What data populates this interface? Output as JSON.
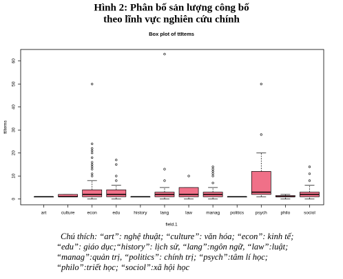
{
  "header": {
    "title_lines": [
      "Hình 2: Phân bố sản lượng công bố",
      "theo lĩnh vực nghiên cứu chính"
    ]
  },
  "chart_data": {
    "type": "box",
    "title": "Box plot of ttItems",
    "x_label": "field.1",
    "y_label": "ttItems",
    "categories": [
      "art",
      "culture",
      "econ",
      "edu",
      "history",
      "lang",
      "law",
      "manag",
      "politics",
      "psych",
      "philo",
      "sociol"
    ],
    "color": "#f07088",
    "boxes": [
      {
        "min": 1,
        "q1": 1,
        "median": 1,
        "q3": 1,
        "max": 1,
        "outliers": []
      },
      {
        "min": 1,
        "q1": 1,
        "median": 1,
        "q3": 2,
        "max": 2,
        "outliers": []
      },
      {
        "min": 0,
        "q1": 1,
        "median": 2,
        "q3": 4,
        "max": 8,
        "outliers": [
          10,
          11,
          13,
          14,
          15,
          16,
          18,
          20,
          21,
          22,
          24,
          50
        ]
      },
      {
        "min": 0,
        "q1": 1,
        "median": 2,
        "q3": 4,
        "max": 6,
        "outliers": [
          8,
          10,
          15,
          17
        ]
      },
      {
        "min": 1,
        "q1": 1,
        "median": 1,
        "q3": 1,
        "max": 1,
        "outliers": []
      },
      {
        "min": 0,
        "q1": 1,
        "median": 2,
        "q3": 3,
        "max": 5,
        "outliers": [
          8,
          13,
          63
        ]
      },
      {
        "min": 0,
        "q1": 1,
        "median": 2,
        "q3": 5,
        "max": 5,
        "outliers": [
          10
        ]
      },
      {
        "min": 0,
        "q1": 1,
        "median": 2,
        "q3": 3,
        "max": 5,
        "outliers": [
          7,
          10,
          11,
          12,
          13,
          14
        ]
      },
      {
        "min": 1,
        "q1": 1,
        "median": 1,
        "q3": 1,
        "max": 1,
        "outliers": []
      },
      {
        "min": 1,
        "q1": 2,
        "median": 3,
        "q3": 12,
        "max": 20,
        "outliers": [
          28,
          50
        ]
      },
      {
        "min": 0,
        "q1": 1,
        "median": 1,
        "q3": 1.5,
        "max": 2,
        "outliers": []
      },
      {
        "min": 0,
        "q1": 1,
        "median": 2,
        "q3": 3,
        "max": 6,
        "outliers": [
          8,
          11,
          14
        ]
      }
    ],
    "ylim": [
      -2.5,
      65
    ],
    "yticks": [
      0,
      10,
      20,
      30,
      40,
      50,
      60
    ]
  },
  "caption": {
    "lines": [
      "Chú thích: “art”: nghệ thuật; “culture”: văn hóa; “econ”: kinh tế;",
      "“edu”: giáo dục;“history”: lịch sử, “lang”:ngôn ngữ, “law”:luật;",
      "“manag”:quản trị, “politics”: chính trị; “psych”:tâm lí học;",
      "“philo”:triết học; “sociol”:xã hội học"
    ]
  }
}
